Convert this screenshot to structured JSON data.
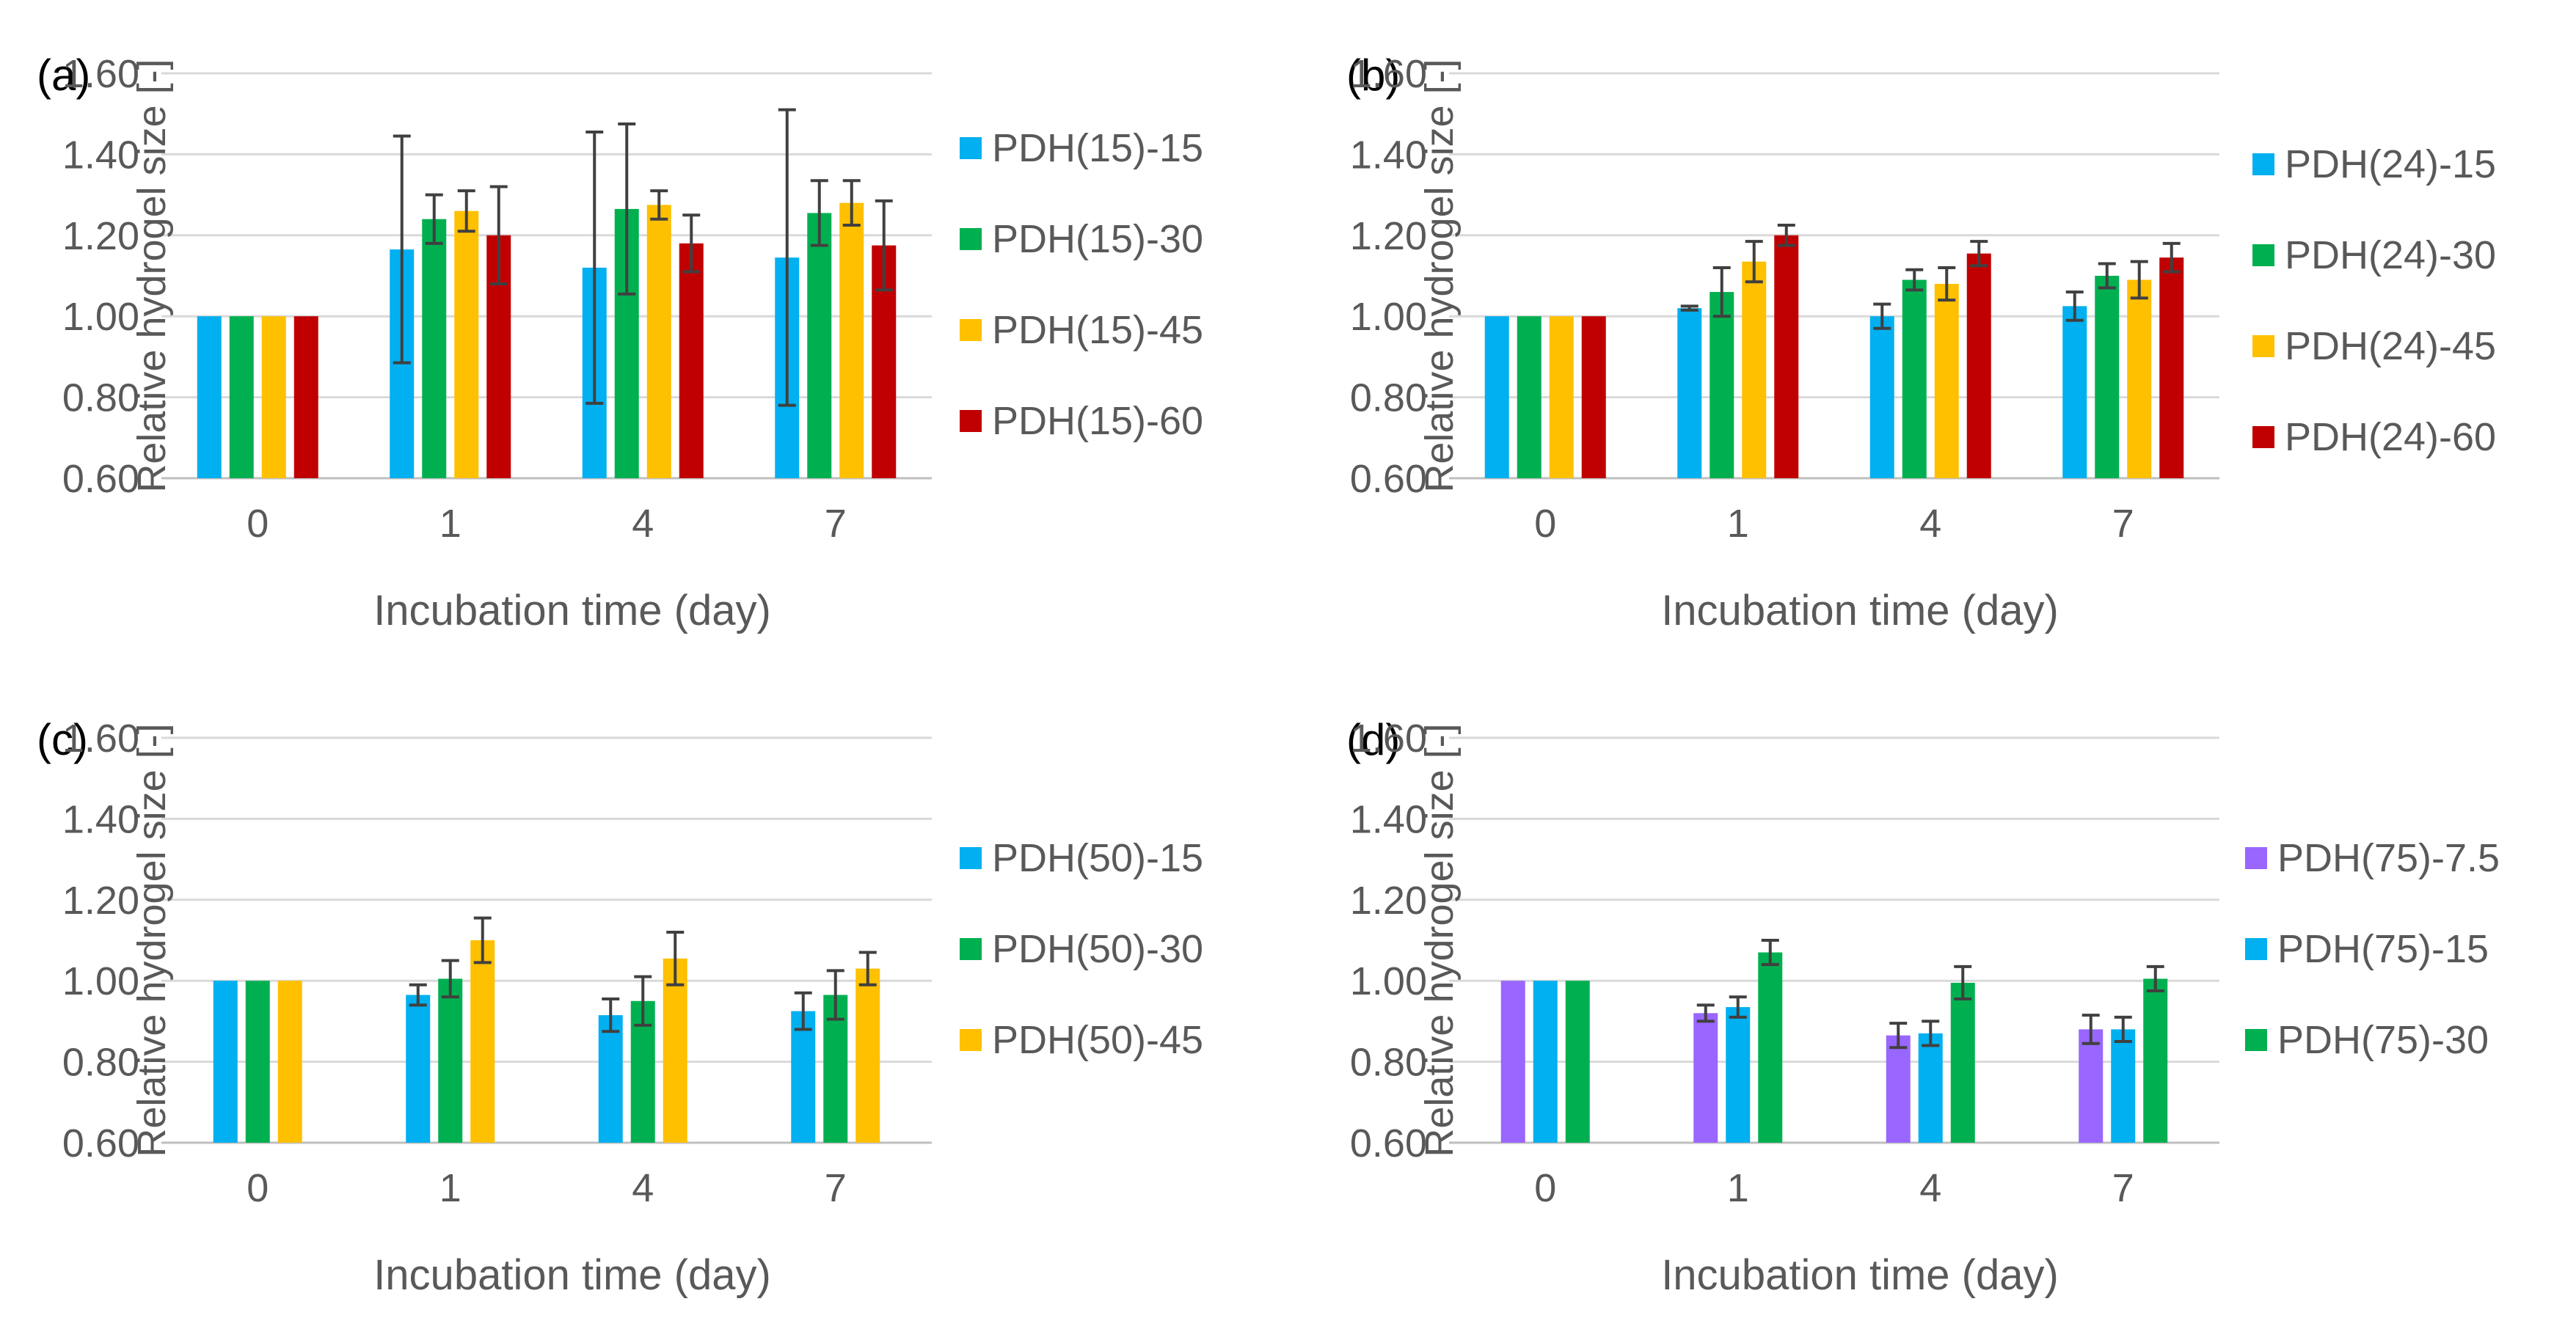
{
  "colors": {
    "blue": "#00B0F0",
    "green": "#00B050",
    "yellow": "#FFC000",
    "red": "#C00000",
    "purple": "#9966FF",
    "error_bar": "#404040",
    "grid": "#D9D9D9",
    "axis_text": "#595959"
  },
  "chart_data": [
    {
      "type": "bar",
      "panel": "(a)",
      "categories": [
        "0",
        "1",
        "4",
        "7"
      ],
      "xlabel": "Incubation time (day)",
      "ylabel": "Relative hydrogel size [-]",
      "ylim": [
        0.6,
        1.6
      ],
      "yticks": [
        "0.60",
        "0.80",
        "1.00",
        "1.20",
        "1.40",
        "1.60"
      ],
      "grid": true,
      "legend": "right",
      "series": [
        {
          "name": "PDH(15)-15",
          "color": "#00B0F0",
          "values": [
            1.0,
            1.165,
            1.12,
            1.145
          ],
          "errors": [
            0.0,
            0.28,
            0.335,
            0.365
          ]
        },
        {
          "name": "PDH(15)-30",
          "color": "#00B050",
          "values": [
            1.0,
            1.24,
            1.265,
            1.255
          ],
          "errors": [
            0.0,
            0.06,
            0.21,
            0.08
          ]
        },
        {
          "name": "PDH(15)-45",
          "color": "#FFC000",
          "values": [
            1.0,
            1.26,
            1.275,
            1.28
          ],
          "errors": [
            0.0,
            0.05,
            0.035,
            0.055
          ]
        },
        {
          "name": "PDH(15)-60",
          "color": "#C00000",
          "values": [
            1.0,
            1.2,
            1.18,
            1.175
          ],
          "errors": [
            0.0,
            0.12,
            0.07,
            0.11
          ]
        }
      ]
    },
    {
      "type": "bar",
      "panel": "(b)",
      "categories": [
        "0",
        "1",
        "4",
        "7"
      ],
      "xlabel": "Incubation time (day)",
      "ylabel": "Relative hydrogel size [-]",
      "ylim": [
        0.6,
        1.6
      ],
      "yticks": [
        "0.60",
        "0.80",
        "1.00",
        "1.20",
        "1.40",
        "1.60"
      ],
      "grid": true,
      "legend": "right",
      "series": [
        {
          "name": "PDH(24)-15",
          "color": "#00B0F0",
          "values": [
            1.0,
            1.02,
            1.0,
            1.025
          ],
          "errors": [
            0.0,
            0.005,
            0.03,
            0.035
          ]
        },
        {
          "name": "PDH(24)-30",
          "color": "#00B050",
          "values": [
            1.0,
            1.06,
            1.09,
            1.1
          ],
          "errors": [
            0.0,
            0.06,
            0.025,
            0.03
          ]
        },
        {
          "name": "PDH(24)-45",
          "color": "#FFC000",
          "values": [
            1.0,
            1.135,
            1.08,
            1.09
          ],
          "errors": [
            0.0,
            0.05,
            0.04,
            0.045
          ]
        },
        {
          "name": "PDH(24)-60",
          "color": "#C00000",
          "values": [
            1.0,
            1.2,
            1.155,
            1.145
          ],
          "errors": [
            0.0,
            0.025,
            0.03,
            0.035
          ]
        }
      ]
    },
    {
      "type": "bar",
      "panel": "(c)",
      "categories": [
        "0",
        "1",
        "4",
        "7"
      ],
      "xlabel": "Incubation time (day)",
      "ylabel": "Relative hydrogel size [-]",
      "ylim": [
        0.6,
        1.6
      ],
      "yticks": [
        "0.60",
        "0.80",
        "1.00",
        "1.20",
        "1.40",
        "1.60"
      ],
      "grid": true,
      "legend": "right",
      "series": [
        {
          "name": "PDH(50)-15",
          "color": "#00B0F0",
          "values": [
            1.0,
            0.965,
            0.915,
            0.925
          ],
          "errors": [
            0.0,
            0.025,
            0.04,
            0.045
          ]
        },
        {
          "name": "PDH(50)-30",
          "color": "#00B050",
          "values": [
            1.0,
            1.005,
            0.95,
            0.965
          ],
          "errors": [
            0.0,
            0.045,
            0.06,
            0.06
          ]
        },
        {
          "name": "PDH(50)-45",
          "color": "#FFC000",
          "values": [
            1.0,
            1.1,
            1.055,
            1.03
          ],
          "errors": [
            0.0,
            0.055,
            0.065,
            0.04
          ]
        }
      ]
    },
    {
      "type": "bar",
      "panel": "(d)",
      "categories": [
        "0",
        "1",
        "4",
        "7"
      ],
      "xlabel": "Incubation time (day)",
      "ylabel": "Relative hydrogel size [-]",
      "ylim": [
        0.6,
        1.6
      ],
      "yticks": [
        "0.60",
        "0.80",
        "1.00",
        "1.20",
        "1.40",
        "1.60"
      ],
      "grid": true,
      "legend": "right",
      "series": [
        {
          "name": "PDH(75)-7.5",
          "color": "#9966FF",
          "values": [
            1.0,
            0.92,
            0.865,
            0.88
          ],
          "errors": [
            0.0,
            0.02,
            0.03,
            0.035
          ]
        },
        {
          "name": "PDH(75)-15",
          "color": "#00B0F0",
          "values": [
            1.0,
            0.935,
            0.87,
            0.88
          ],
          "errors": [
            0.0,
            0.025,
            0.03,
            0.03
          ]
        },
        {
          "name": "PDH(75)-30",
          "color": "#00B050",
          "values": [
            1.0,
            1.07,
            0.995,
            1.005
          ],
          "errors": [
            0.0,
            0.03,
            0.04,
            0.03
          ]
        }
      ]
    }
  ]
}
